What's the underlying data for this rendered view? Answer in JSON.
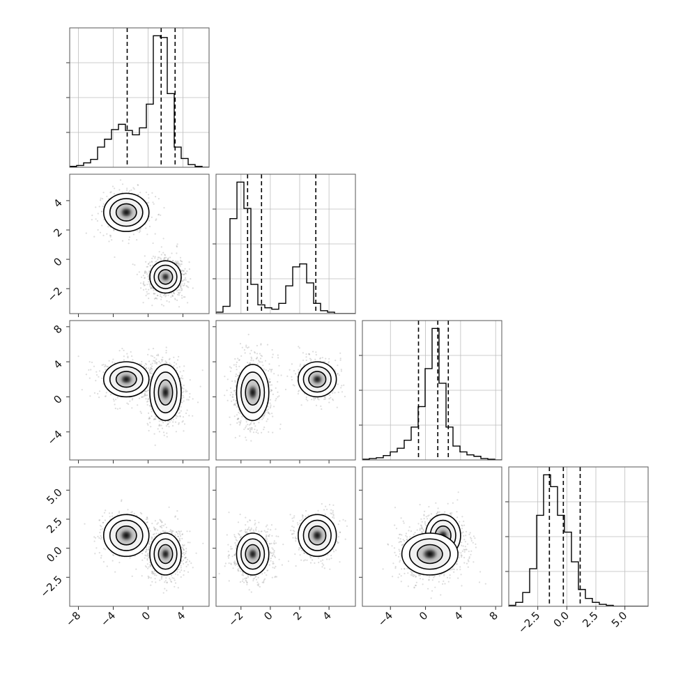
{
  "chart_data": {
    "type": "corner",
    "dimensions": 4,
    "grid": true,
    "colors": {
      "line": "#000000",
      "points": "#9a9a9a",
      "grid": "#bdbdbd",
      "frame": "#555555"
    },
    "axes": [
      {
        "lim": [
          -9,
          7
        ],
        "ticks": [
          -8,
          -4,
          0,
          4
        ],
        "tick_labels": [
          "−8",
          "−4",
          "0",
          "4"
        ]
      },
      {
        "lim": [
          -3.7,
          5.8
        ],
        "ticks": [
          -2,
          0,
          2,
          4
        ],
        "tick_labels": [
          "−2",
          "0",
          "2",
          "4"
        ]
      },
      {
        "lim": [
          -7.2,
          8.7
        ],
        "ticks": [
          -4,
          0,
          4,
          8
        ],
        "tick_labels": [
          "−4",
          "0",
          "4",
          "8"
        ]
      },
      {
        "lim": [
          -5.0,
          7.0
        ],
        "ticks": [
          -2.5,
          0.0,
          2.5,
          5.0
        ],
        "tick_labels": [
          "−2.5",
          "0.0",
          "2.5",
          "5.0"
        ]
      }
    ],
    "histograms": [
      {
        "dim": 0,
        "bin_edges_range": [
          -9,
          7
        ],
        "quantiles": [
          -2.4,
          1.5,
          3.1
        ],
        "counts": [
          1,
          2,
          5,
          9,
          23,
          32,
          43,
          49,
          42,
          37,
          45,
          72,
          150,
          148,
          84,
          23,
          10,
          3,
          1,
          0
        ]
      },
      {
        "dim": 1,
        "bin_edges_range": [
          -3.7,
          5.8
        ],
        "quantiles": [
          -1.55,
          -0.6,
          3.1
        ],
        "counts": [
          1,
          5,
          65,
          90,
          72,
          20,
          6,
          4,
          3,
          7,
          19,
          32,
          34,
          21,
          7,
          2,
          1,
          0,
          0,
          0
        ]
      },
      {
        "dim": 2,
        "bin_edges_range": [
          -7.2,
          8.7
        ],
        "quantiles": [
          -0.8,
          1.4,
          2.6
        ],
        "counts": [
          1,
          2,
          3,
          6,
          11,
          16,
          27,
          45,
          73,
          125,
          180,
          105,
          45,
          19,
          11,
          7,
          5,
          2,
          1,
          0
        ]
      },
      {
        "dim": 3,
        "bin_edges_range": [
          -5.0,
          7.0
        ],
        "quantiles": [
          -1.5,
          -0.3,
          1.15
        ],
        "counts": [
          1,
          4,
          14,
          38,
          92,
          133,
          121,
          92,
          75,
          45,
          17,
          8,
          4,
          2,
          1,
          0,
          0,
          0,
          0,
          0
        ]
      }
    ],
    "clusters": [
      {
        "weight": 0.33,
        "mean": [
          -2.5,
          3.2,
          2.0,
          1.1
        ],
        "sd": [
          1.3,
          0.65,
          1.0,
          0.9
        ]
      },
      {
        "weight": 0.67,
        "mean": [
          2.0,
          -1.2,
          0.5,
          -0.5
        ],
        "sd": [
          0.9,
          0.55,
          1.6,
          0.9
        ]
      }
    ]
  }
}
